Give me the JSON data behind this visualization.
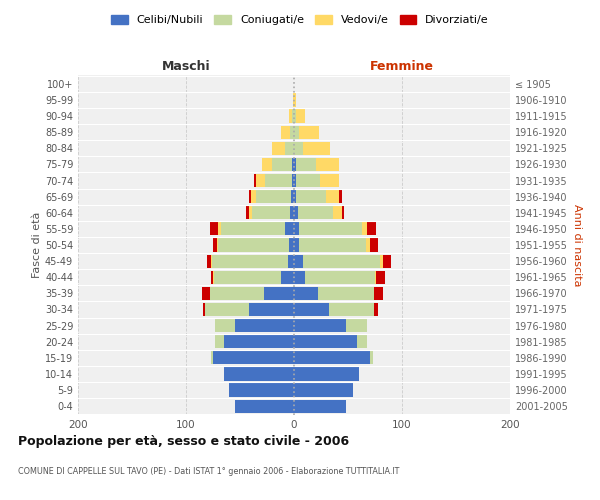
{
  "age_groups": [
    "0-4",
    "5-9",
    "10-14",
    "15-19",
    "20-24",
    "25-29",
    "30-34",
    "35-39",
    "40-44",
    "45-49",
    "50-54",
    "55-59",
    "60-64",
    "65-69",
    "70-74",
    "75-79",
    "80-84",
    "85-89",
    "90-94",
    "95-99",
    "100+"
  ],
  "birth_years": [
    "2001-2005",
    "1996-2000",
    "1991-1995",
    "1986-1990",
    "1981-1985",
    "1976-1980",
    "1971-1975",
    "1966-1970",
    "1961-1965",
    "1956-1960",
    "1951-1955",
    "1946-1950",
    "1941-1945",
    "1936-1940",
    "1931-1935",
    "1926-1930",
    "1921-1925",
    "1916-1920",
    "1911-1915",
    "1906-1910",
    "≤ 1905"
  ],
  "colors": {
    "celibe": "#4472c4",
    "coniugato": "#c5d9a0",
    "vedovo": "#ffd966",
    "divorziato": "#cc0000"
  },
  "maschi": {
    "celibe": [
      55,
      60,
      65,
      75,
      65,
      55,
      42,
      28,
      12,
      6,
      5,
      8,
      4,
      3,
      2,
      2,
      0,
      0,
      0,
      0,
      0
    ],
    "coniugato": [
      0,
      0,
      0,
      2,
      8,
      18,
      40,
      50,
      62,
      70,
      65,
      60,
      35,
      32,
      25,
      18,
      8,
      4,
      2,
      0,
      0
    ],
    "vedovo": [
      0,
      0,
      0,
      0,
      0,
      0,
      0,
      0,
      1,
      1,
      1,
      2,
      3,
      5,
      8,
      10,
      12,
      8,
      3,
      1,
      0
    ],
    "divorziato": [
      0,
      0,
      0,
      0,
      0,
      0,
      2,
      7,
      2,
      4,
      4,
      8,
      2,
      2,
      2,
      0,
      0,
      0,
      0,
      0,
      0
    ]
  },
  "femmine": {
    "nubile": [
      48,
      55,
      60,
      70,
      58,
      48,
      32,
      22,
      10,
      8,
      5,
      5,
      4,
      2,
      2,
      2,
      0,
      0,
      0,
      0,
      0
    ],
    "coniugata": [
      0,
      0,
      0,
      3,
      10,
      20,
      42,
      52,
      65,
      72,
      62,
      58,
      32,
      28,
      22,
      18,
      8,
      5,
      2,
      0,
      0
    ],
    "vedova": [
      0,
      0,
      0,
      0,
      0,
      0,
      0,
      0,
      1,
      2,
      3,
      5,
      8,
      12,
      18,
      22,
      25,
      18,
      8,
      2,
      0
    ],
    "divorziata": [
      0,
      0,
      0,
      0,
      0,
      0,
      4,
      8,
      8,
      8,
      8,
      8,
      2,
      2,
      0,
      0,
      0,
      0,
      0,
      0,
      0
    ]
  },
  "title": "Popolazione per età, sesso e stato civile - 2006",
  "subtitle": "COMUNE DI CAPPELLE SUL TAVO (PE) - Dati ISTAT 1° gennaio 2006 - Elaborazione TUTTITALIA.IT",
  "xlabel_left": "Maschi",
  "xlabel_right": "Femmine",
  "ylabel_left": "Fasce di età",
  "ylabel_right": "Anni di nascita",
  "legend": [
    "Celibi/Nubili",
    "Coniugati/e",
    "Vedovi/e",
    "Divorziati/e"
  ],
  "xlim": 200,
  "bg_color": "#ffffff",
  "grid_color": "#cccccc"
}
